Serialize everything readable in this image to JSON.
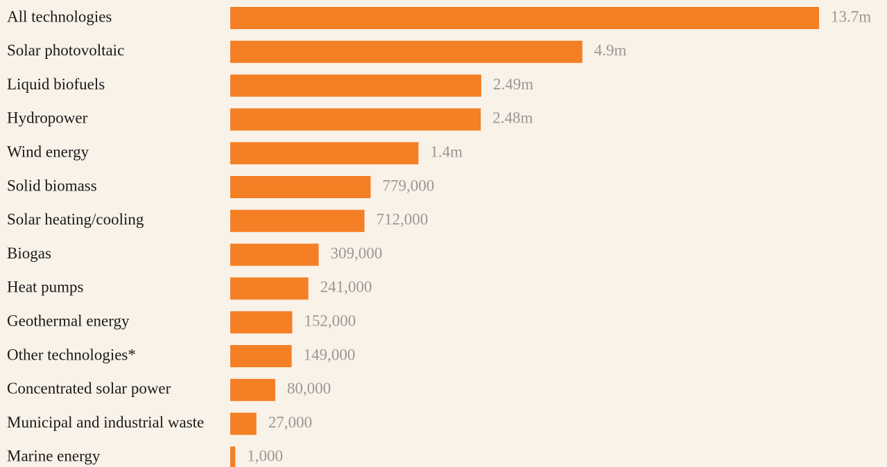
{
  "chart_data": {
    "type": "hbar",
    "xscale": "sqrt",
    "color": "#f47f24",
    "label_color": "#9a9794",
    "categories": [
      "All technologies",
      "Solar photovoltaic",
      "Liquid biofuels",
      "Hydropower",
      "Wind energy",
      "Solid biomass",
      "Solar heating/cooling",
      "Biogas",
      "Heat pumps",
      "Geothermal energy",
      "Other technologies*",
      "Concentrated solar power",
      "Municipal and industrial waste",
      "Marine energy"
    ],
    "values": [
      13700000,
      4900000,
      2490000,
      2480000,
      1400000,
      779000,
      712000,
      309000,
      241000,
      152000,
      149000,
      80000,
      27000,
      1000
    ],
    "value_labels": [
      "13.7m",
      "4.9m",
      "2.49m",
      "2.48m",
      "1.4m",
      "779,000",
      "712,000",
      "309,000",
      "241,000",
      "152,000",
      "149,000",
      "80,000",
      "27,000",
      "1,000"
    ],
    "xlim": [
      0,
      13700000
    ]
  }
}
